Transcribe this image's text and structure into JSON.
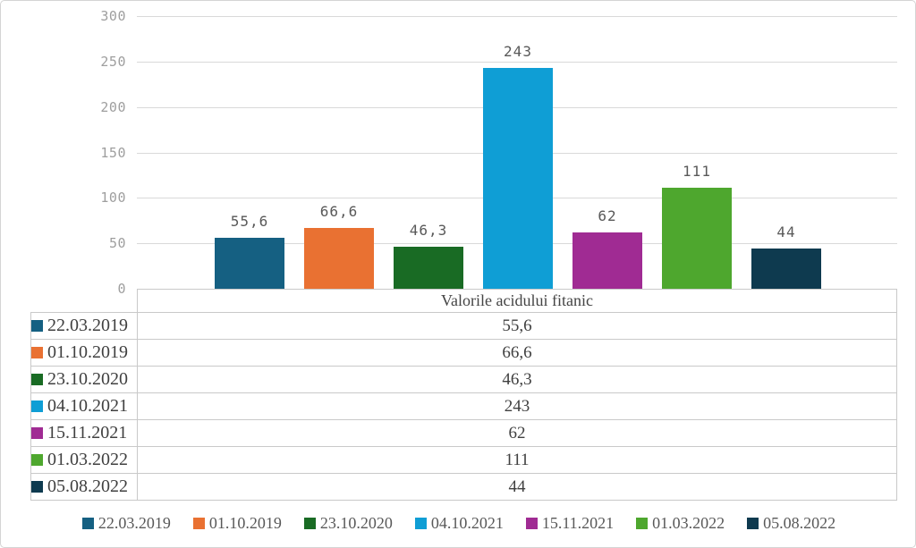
{
  "chart_data": {
    "type": "bar",
    "title": "Valorile acidului fitanic",
    "categories": [
      "22.03.2019",
      "01.10.2019",
      "23.10.2020",
      "04.10.2021",
      "15.11.2021",
      "01.03.2022",
      "05.08.2022"
    ],
    "values": [
      55.6,
      66.6,
      46.3,
      243,
      62,
      111,
      44
    ],
    "value_labels": [
      "55,6",
      "66,6",
      "46,3",
      "243",
      "62",
      "111",
      "44"
    ],
    "colors": [
      "#156082",
      "#E97132",
      "#196B24",
      "#0F9ED5",
      "#A02B93",
      "#4EA72E",
      "#0E3A4F"
    ],
    "xlabel": "",
    "ylabel": "",
    "ylim": [
      0,
      300
    ],
    "ytick_step": 50,
    "ytick_labels": [
      "0",
      "50",
      "100",
      "150",
      "200",
      "250",
      "300"
    ],
    "grid": true,
    "legend_position": "bottom"
  },
  "table": {
    "title": "Valorile acidului fitanic"
  },
  "style": {
    "gridline_color": "#d9d9d9",
    "table_border_color": "#c9c9c9",
    "axis_text_color": "#9e9e9e",
    "bar_label_color": "#595959",
    "table_text_color": "#404040",
    "legend_text_color": "#595959",
    "background": "#ffffff"
  }
}
